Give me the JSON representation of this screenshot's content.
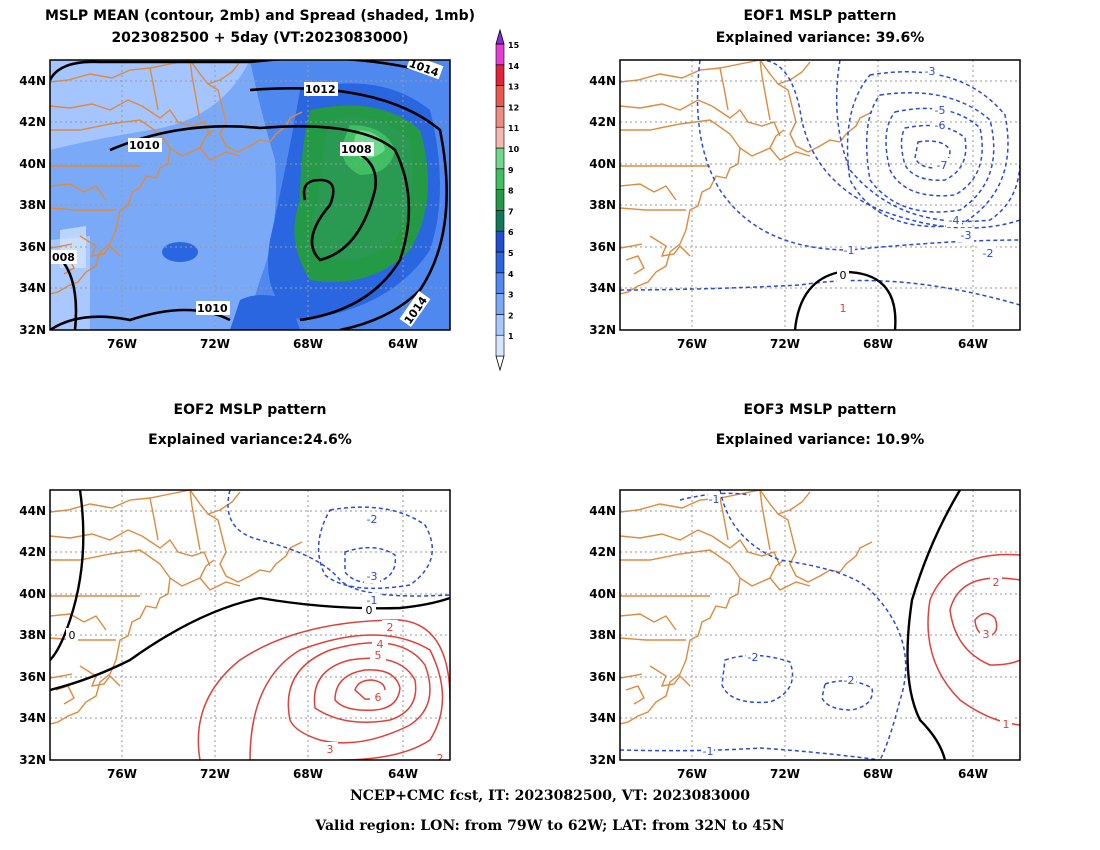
{
  "panel_mean": {
    "title_line1": "MSLP MEAN (contour, 2mb) and Spread (shaded, 1mb)",
    "title_line2": "2023082500 + 5day (VT:2023083000)",
    "contour_labels": [
      "1014",
      "1012",
      "1010",
      "1008",
      "008",
      "1010",
      "1014"
    ],
    "colorbar_labels": [
      "1",
      "2",
      "3",
      "4",
      "5",
      "6",
      "7",
      "8",
      "9",
      "10",
      "11",
      "12",
      "13",
      "14",
      "15"
    ],
    "colorbar_colors": [
      "#d6e6ff",
      "#a8c8ff",
      "#7aaaf7",
      "#4f88ee",
      "#2a66e0",
      "#1e4fcf",
      "#0f7a5a",
      "#249a46",
      "#3fbf62",
      "#6ed98a",
      "#f4b8b0",
      "#ef8b80",
      "#e85a50",
      "#e0243a",
      "#e63cd8"
    ]
  },
  "panel_eof1": {
    "title_line1": "EOF1 MSLP pattern",
    "title_line2": "Explained variance: 39.6%",
    "contour_labels": [
      "-3",
      "-5",
      "-6",
      "-7",
      "-4",
      "-3",
      "-2",
      "-1",
      "0",
      "1"
    ]
  },
  "panel_eof2": {
    "title_line1": "EOF2 MSLP pattern",
    "title_line2": "Explained variance:24.6%",
    "contour_labels": [
      "-2",
      "-3",
      "-1",
      "0",
      "0",
      "2",
      "4",
      "5",
      "6",
      "3",
      "2"
    ]
  },
  "panel_eof3": {
    "title_line1": "EOF3 MSLP pattern",
    "title_line2": "Explained variance: 10.9%",
    "contour_labels": [
      "-1",
      "-2",
      "-2",
      "-1",
      "2",
      "3",
      "1"
    ]
  },
  "axes": {
    "lat_labels": [
      "44N",
      "42N",
      "40N",
      "38N",
      "36N",
      "34N",
      "32N"
    ],
    "lon_labels": [
      "76W",
      "72W",
      "68W",
      "64W"
    ]
  },
  "footer": {
    "line1": "NCEP+CMC fcst, IT: 2023082500, VT: 2023083000",
    "line2": "Valid region: LON: from 79W to 62W; LAT: from 32N to 45N"
  },
  "colors": {
    "coast": "#e08a3c",
    "negative": "#2a4bd8",
    "positive": "#e0403a",
    "zero": "#000000",
    "grid": "#999999"
  }
}
